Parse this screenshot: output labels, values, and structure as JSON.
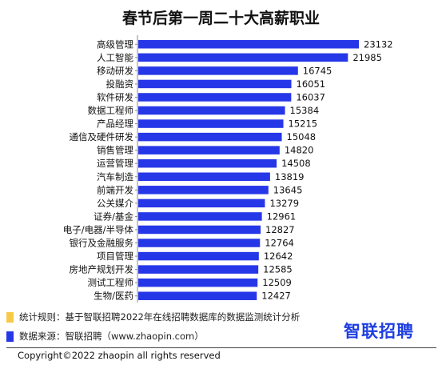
{
  "title": "春节后第一周二十大高薪职业",
  "chart_data": {
    "type": "bar",
    "orientation": "horizontal",
    "title": "春节后第一周二十大高薪职业",
    "categories": [
      "高级管理",
      "人工智能",
      "移动研发",
      "投融资",
      "软件研发",
      "数据工程师",
      "产品经理",
      "通信及硬件研发",
      "销售管理",
      "运营管理",
      "汽车制造",
      "前端开发",
      "公关媒介",
      "证券/基金",
      "电子/电器/半导体",
      "银行及金融服务",
      "项目管理",
      "房地产规划开发",
      "测试工程师",
      "生物/医药"
    ],
    "values": [
      23132,
      21985,
      16745,
      16051,
      16037,
      15384,
      15215,
      15048,
      14820,
      14508,
      13819,
      13645,
      13279,
      12961,
      12827,
      12764,
      12642,
      12585,
      12509,
      12427
    ],
    "xlim": [
      0,
      25000
    ],
    "bar_color": "#2637e8",
    "grid": false
  },
  "footer": {
    "rule_label": "统计规则：基于智联招聘2022年在线招聘数据库的数据监测统计分析",
    "source_label": "数据来源：智联招聘（www.zhaopin.com）",
    "rule_color": "#f7c948",
    "source_color": "#2637e8",
    "logo_text": "智联招聘",
    "copyright": "Copyright©2022 zhaopin all rights reserved"
  }
}
